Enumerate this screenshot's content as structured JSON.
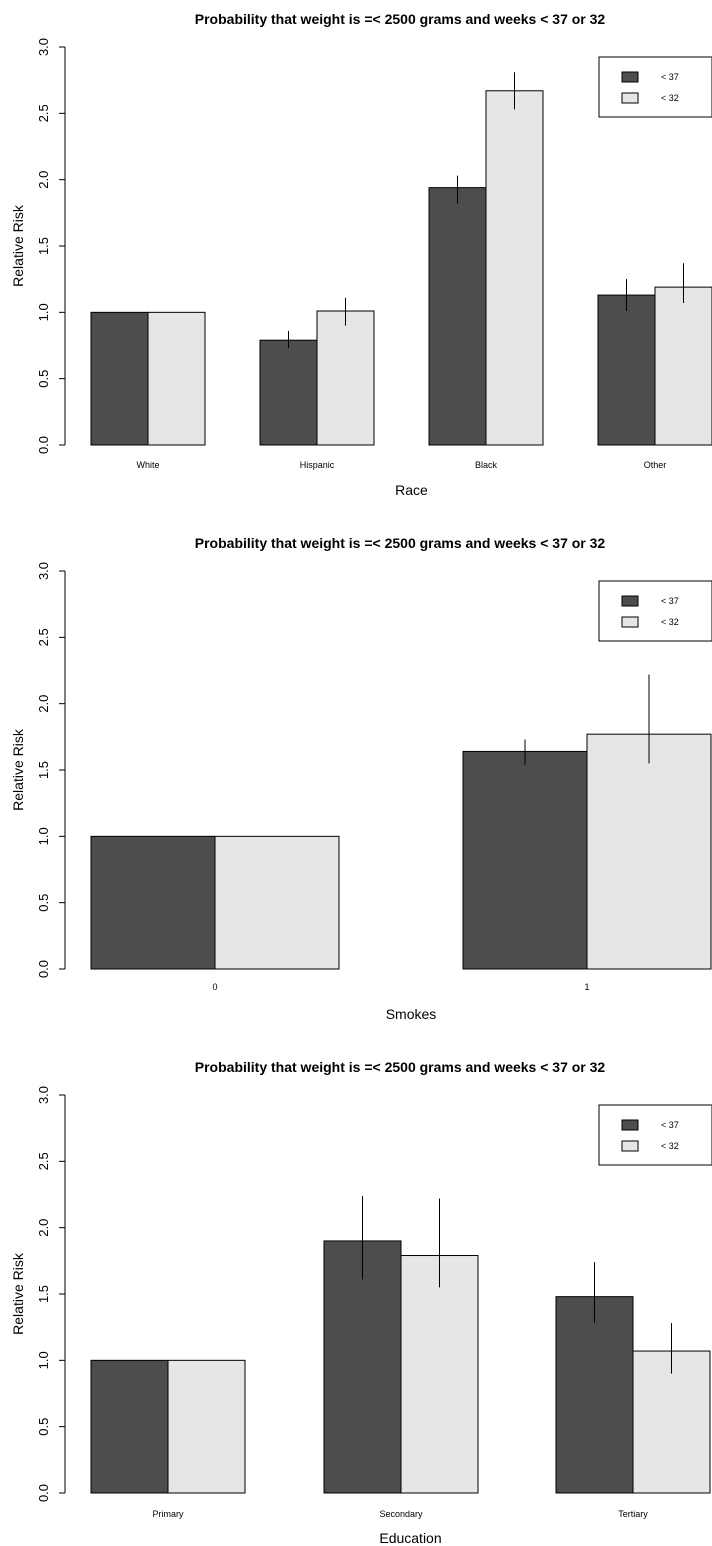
{
  "chart_data": [
    {
      "type": "bar",
      "title": "Probability that weight is =< 2500 grams and weeks < 37 or 32",
      "xlabel": "Race",
      "ylabel": "Relative Risk",
      "categories": [
        "White",
        "Hispanic",
        "Black",
        "Other"
      ],
      "series": [
        {
          "name": "< 37",
          "values": [
            1.0,
            0.79,
            1.94,
            1.13
          ],
          "error_low": [
            1.0,
            0.73,
            1.82,
            1.01
          ],
          "error_high": [
            1.0,
            0.86,
            2.03,
            1.25
          ]
        },
        {
          "name": "< 32",
          "values": [
            1.0,
            1.01,
            2.67,
            1.19
          ],
          "error_low": [
            1.0,
            0.9,
            2.53,
            1.07
          ],
          "error_high": [
            1.0,
            1.11,
            2.81,
            1.37
          ]
        }
      ],
      "ylim": [
        0,
        3.0
      ],
      "yticks": [
        "0.0",
        "0.5",
        "1.0",
        "1.5",
        "2.0",
        "2.5",
        "3.0"
      ],
      "legend": "top-right",
      "colors": [
        "#4d4d4d",
        "#e6e6e6"
      ],
      "grid": false
    },
    {
      "type": "bar",
      "title": "Probability that weight is =< 2500 grams and weeks < 37 or 32",
      "xlabel": "Smokes",
      "ylabel": "Relative Risk",
      "categories": [
        "0",
        "1"
      ],
      "series": [
        {
          "name": "< 37",
          "values": [
            1.0,
            1.64
          ],
          "error_low": [
            1.0,
            1.54
          ],
          "error_high": [
            1.0,
            1.73
          ]
        },
        {
          "name": "< 32",
          "values": [
            1.0,
            1.77
          ],
          "error_low": [
            1.0,
            1.55
          ],
          "error_high": [
            1.0,
            2.22
          ]
        }
      ],
      "ylim": [
        0,
        3.0
      ],
      "yticks": [
        "0.0",
        "0.5",
        "1.0",
        "1.5",
        "2.0",
        "2.5",
        "3.0"
      ],
      "legend": "top-right",
      "colors": [
        "#4d4d4d",
        "#e6e6e6"
      ],
      "grid": false
    },
    {
      "type": "bar",
      "title": "Probability that weight is =< 2500 grams and weeks < 37 or 32",
      "xlabel": "Education",
      "ylabel": "Relative Risk",
      "categories": [
        "Primary",
        "Secondary",
        "Tertiary"
      ],
      "series": [
        {
          "name": "< 37",
          "values": [
            1.0,
            1.9,
            1.48
          ],
          "error_low": [
            1.0,
            1.61,
            1.28
          ],
          "error_high": [
            1.0,
            2.24,
            1.74
          ]
        },
        {
          "name": "< 32",
          "values": [
            1.0,
            1.79,
            1.07
          ],
          "error_low": [
            1.0,
            1.55,
            0.9
          ],
          "error_high": [
            1.0,
            2.22,
            1.28
          ]
        }
      ],
      "ylim": [
        0,
        3.0
      ],
      "yticks": [
        "0.0",
        "0.5",
        "1.0",
        "1.5",
        "2.0",
        "2.5",
        "3.0"
      ],
      "legend": "top-right",
      "colors": [
        "#4d4d4d",
        "#e6e6e6"
      ],
      "grid": false
    }
  ]
}
